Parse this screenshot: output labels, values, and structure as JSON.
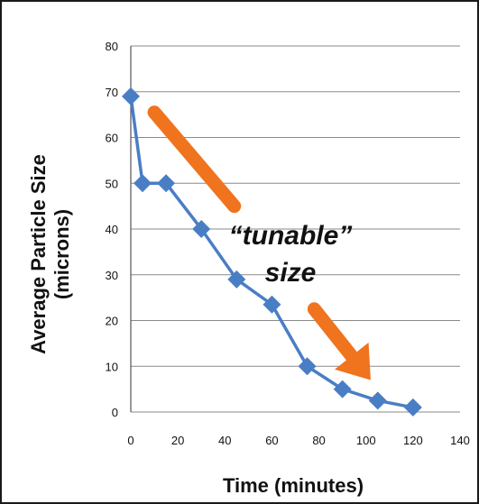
{
  "chart_data": {
    "type": "line",
    "xlabel": "Time (minutes)",
    "ylabel_line1": "Average Particle Size",
    "ylabel_line2": "(microns)",
    "xlim": [
      0,
      140
    ],
    "ylim": [
      0,
      80
    ],
    "x_ticks": [
      "0",
      "20",
      "40",
      "60",
      "80",
      "100",
      "120",
      "140"
    ],
    "y_ticks": [
      "0",
      "10",
      "20",
      "30",
      "40",
      "50",
      "60",
      "70",
      "80"
    ],
    "grid": true,
    "series": [
      {
        "color": "#4a7ec4",
        "marker": "diamond",
        "x": [
          0,
          5,
          15,
          30,
          45,
          60,
          75,
          90,
          105,
          120
        ],
        "y": [
          69,
          50,
          50,
          40,
          29,
          23.5,
          10,
          5,
          2.5,
          1
        ]
      }
    ],
    "annotations": {
      "line1": "“tunable”",
      "line2": "size"
    },
    "arrow_color": "#f0731e"
  }
}
